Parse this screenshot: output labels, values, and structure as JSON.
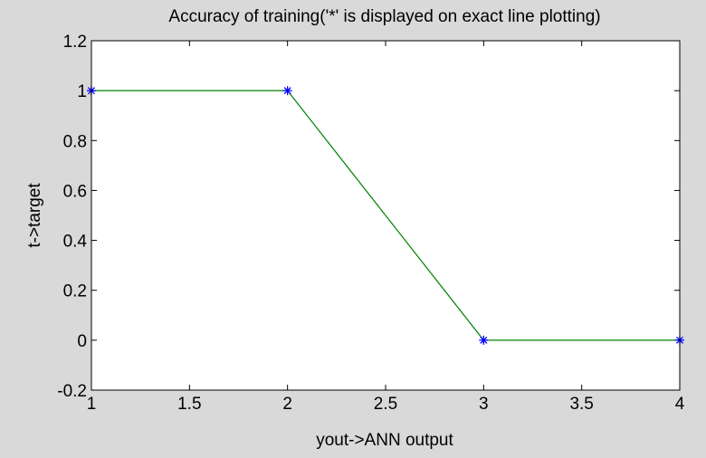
{
  "chart_data": {
    "type": "line",
    "title": "Accuracy of training('*' is displayed on exact line plotting)",
    "xlabel": "yout->ANN output",
    "ylabel": "t->target",
    "xlim": [
      1,
      4
    ],
    "ylim": [
      -0.2,
      1.2
    ],
    "x_ticks": [
      "1",
      "1.5",
      "2",
      "2.5",
      "3",
      "3.5",
      "4"
    ],
    "y_ticks": [
      "-0.2",
      "0",
      "0.2",
      "0.4",
      "0.6",
      "0.8",
      "1",
      "1.2"
    ],
    "grid": false,
    "series": [
      {
        "x": [
          1,
          2,
          3,
          4
        ],
        "values": [
          1,
          1,
          0,
          0
        ],
        "line_color": "#008000",
        "marker": "*",
        "marker_color": "#0000ff"
      }
    ]
  },
  "colors": {
    "figure_background": "#d9d9d9",
    "axes_background": "#ffffff",
    "line": "#008000",
    "marker": "#0000ff"
  }
}
